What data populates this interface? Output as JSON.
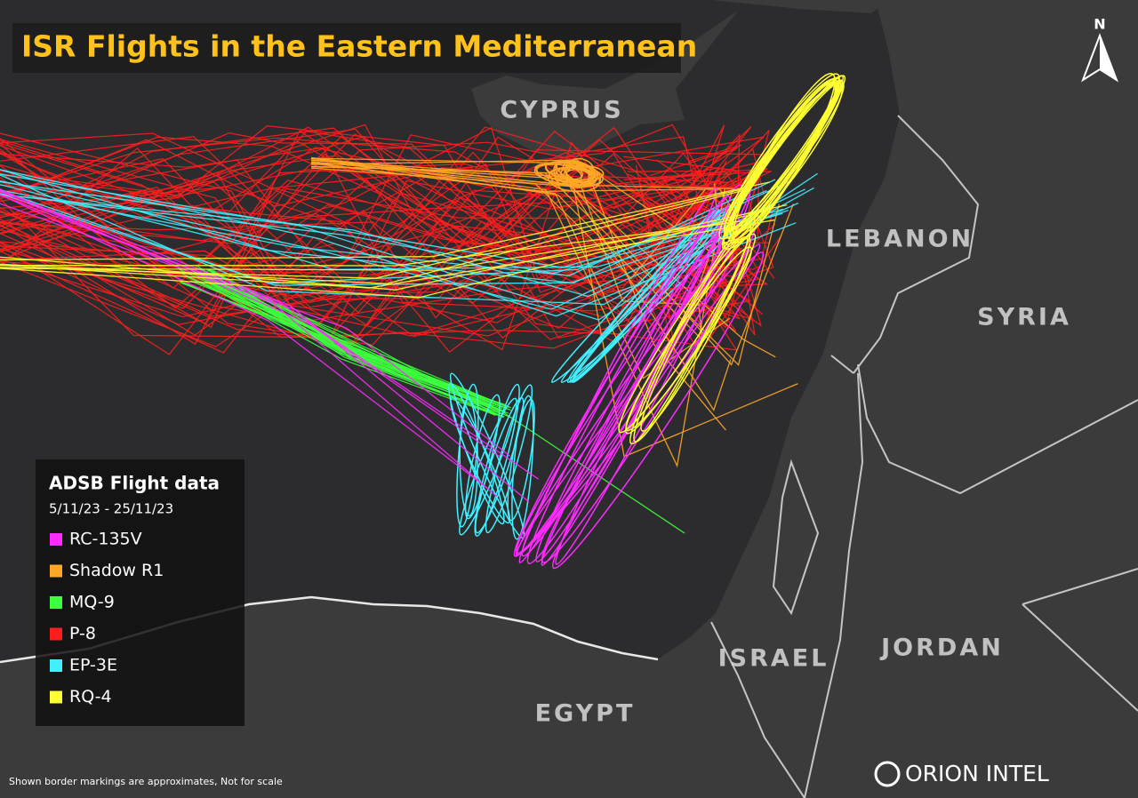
{
  "title": "ISR Flights in the Eastern Mediterranean",
  "compass": "N",
  "places": [
    "CYPRUS",
    "LEBANON",
    "SYRIA",
    "ISRAEL",
    "JORDAN",
    "EGYPT"
  ],
  "legend": {
    "title": "ADSB Flight data",
    "period": "5/11/23 - 25/11/23",
    "items": [
      {
        "name": "RC-135V",
        "color": "#ff2bff"
      },
      {
        "name": "Shadow R1",
        "color": "#ffa726"
      },
      {
        "name": "MQ-9",
        "color": "#3dff3d"
      },
      {
        "name": "P-8",
        "color": "#ff1e1e"
      },
      {
        "name": "EP-3E",
        "color": "#40f0ff"
      },
      {
        "name": "RQ-4",
        "color": "#ffff33"
      }
    ]
  },
  "footnote": "Shown border markings are approximates, Not for scale",
  "brand": "ORION INTEL"
}
